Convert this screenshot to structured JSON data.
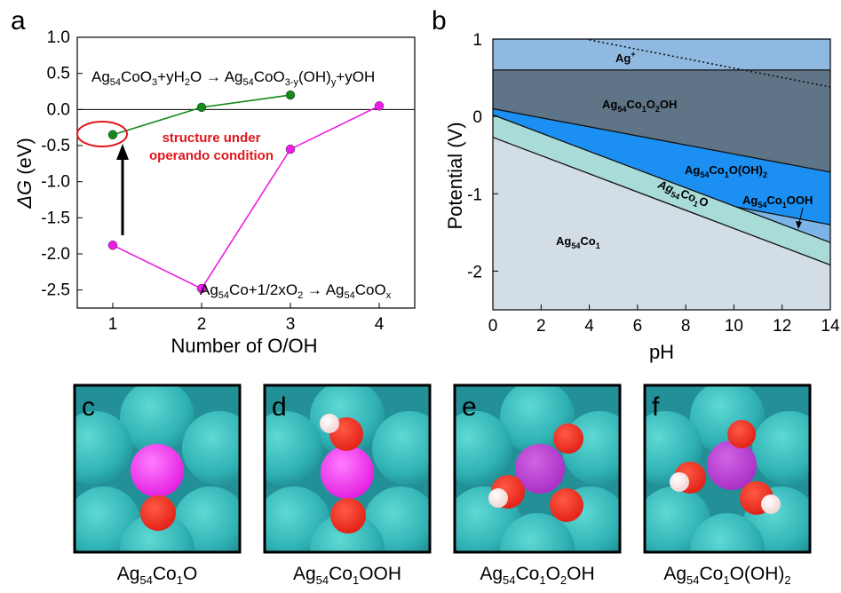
{
  "panel_a": {
    "letter": "a",
    "xlabel": "Number of O/OH",
    "ylabel_symbol": "ΔG",
    "ylabel_unit": " (eV)",
    "eq_top": {
      "a1": "Ag",
      "s1": "54",
      "a2": "CoO",
      "s2": "3",
      "a3": "+yH",
      "s3": "2",
      "a4": "O → Ag",
      "s4": "54",
      "a5": "CoO",
      "s5": "3-y",
      "a6": "(OH)",
      "s6": "y",
      "a7": "+yOH"
    },
    "eq_bottom": {
      "a1": "Ag",
      "s1": "54",
      "a2": "Co+1/2xO",
      "s2": "2",
      "a3": " → Ag",
      "s4": "54",
      "a5": "CoO",
      "s5": "x"
    },
    "note_line1": "structure under",
    "note_line2": "operando condition"
  },
  "panel_b": {
    "letter": "b",
    "xlabel": "pH",
    "ylabel": "Potential (V)",
    "labels": {
      "ag_plus": {
        "base": "Ag",
        "sup": "+"
      },
      "co1o2oh": {
        "a": "Ag",
        "s1": "54",
        "b": "Co",
        "s2": "1",
        "c": "O",
        "s3": "2",
        "d": "OH"
      },
      "co1ooh2": {
        "a": "Ag",
        "s1": "54",
        "b": "Co",
        "s2": "1",
        "c": "O(OH)",
        "s3": "2"
      },
      "co1ooh": {
        "a": "Ag",
        "s1": "54",
        "b": "Co",
        "s2": "1",
        "c": "OOH"
      },
      "co1o": {
        "a": "Ag",
        "s1": "54",
        "b": "Co",
        "s2": "1",
        "c": "O"
      },
      "co1": {
        "a": "Ag",
        "s1": "54",
        "b": "Co",
        "s2": "1"
      }
    },
    "colors": {
      "ag_plus": "#8fb9e0",
      "co1o2oh": "#5f7486",
      "co1ooh2": "#1b8ff2",
      "co1ooh": "#7db4e8",
      "co1o": "#a9dcd8",
      "co1": "#d3dde6"
    }
  },
  "structures": [
    {
      "letter": "c",
      "caption": {
        "a": "Ag",
        "s1": "54",
        "b": "Co",
        "s2": "1",
        "c": "O"
      }
    },
    {
      "letter": "d",
      "caption": {
        "a": "Ag",
        "s1": "54",
        "b": "Co",
        "s2": "1",
        "c": "OOH"
      }
    },
    {
      "letter": "e",
      "caption": {
        "a": "Ag",
        "s1": "54",
        "b": "Co",
        "s2": "1",
        "c": "O",
        "s3": "2",
        "d": "OH"
      }
    },
    {
      "letter": "f",
      "caption": {
        "a": "Ag",
        "s1": "54",
        "b": "Co",
        "s2": "1",
        "c": "O(OH)",
        "s3": "2"
      }
    }
  ],
  "chart_data": [
    {
      "type": "line",
      "xlabel": "Number of O/OH",
      "ylabel": "ΔG (eV)",
      "xlim": [
        0.6,
        4.4
      ],
      "ylim": [
        -2.75,
        1.0
      ],
      "xticks": [
        1,
        2,
        3,
        4
      ],
      "yticks": [
        1.0,
        0.5,
        0.0,
        -0.5,
        -1.0,
        -1.5,
        -2.0,
        -2.5
      ],
      "series": [
        {
          "name": "Ag54CoO3+yH2O → Ag54CoO3-y(OH)y+yOH",
          "color": "#138a1b",
          "x": [
            1,
            2,
            3
          ],
          "y": [
            -0.35,
            0.03,
            0.2
          ]
        },
        {
          "name": "Ag54Co+1/2xO2 → Ag54CoOx",
          "color": "#ee1ce6",
          "x": [
            1,
            2,
            3,
            4
          ],
          "y": [
            -1.88,
            -2.48,
            -0.55,
            0.05
          ]
        }
      ],
      "reference_line_y": 0.0
    },
    {
      "type": "area",
      "xlabel": "pH",
      "ylabel": "Potential (V)",
      "xlim": [
        0,
        14
      ],
      "ylim": [
        -2.5,
        1.0
      ],
      "xticks": [
        0,
        2,
        4,
        6,
        8,
        10,
        12,
        14
      ],
      "yticks": [
        1,
        0,
        -1,
        -2
      ],
      "boundaries": [
        {
          "between": [
            "Ag+",
            "Ag54Co1O2OH"
          ],
          "x": [
            0,
            14
          ],
          "y": [
            0.6,
            0.6
          ]
        },
        {
          "between": [
            "Ag54Co1O2OH",
            "Ag54Co1O(OH)2"
          ],
          "x": [
            0,
            14
          ],
          "y": [
            0.1,
            -0.72
          ]
        },
        {
          "between": [
            "Ag54Co1O(OH)2",
            "Ag54Co1OOH"
          ],
          "x": [
            10.1,
            14
          ],
          "y": [
            -1.17,
            -1.4
          ]
        },
        {
          "between": [
            "Ag54Co1O(OH)2 / Ag54Co1OOH",
            "Ag54Co1O"
          ],
          "x": [
            0,
            14
          ],
          "y": [
            0.02,
            -1.63
          ]
        },
        {
          "between": [
            "Ag54Co1O",
            "Ag54Co1"
          ],
          "x": [
            0,
            14
          ],
          "y": [
            -0.27,
            -1.92
          ]
        }
      ],
      "dotted_line": {
        "x": [
          4,
          14
        ],
        "y": [
          0.99,
          0.38
        ]
      }
    }
  ]
}
